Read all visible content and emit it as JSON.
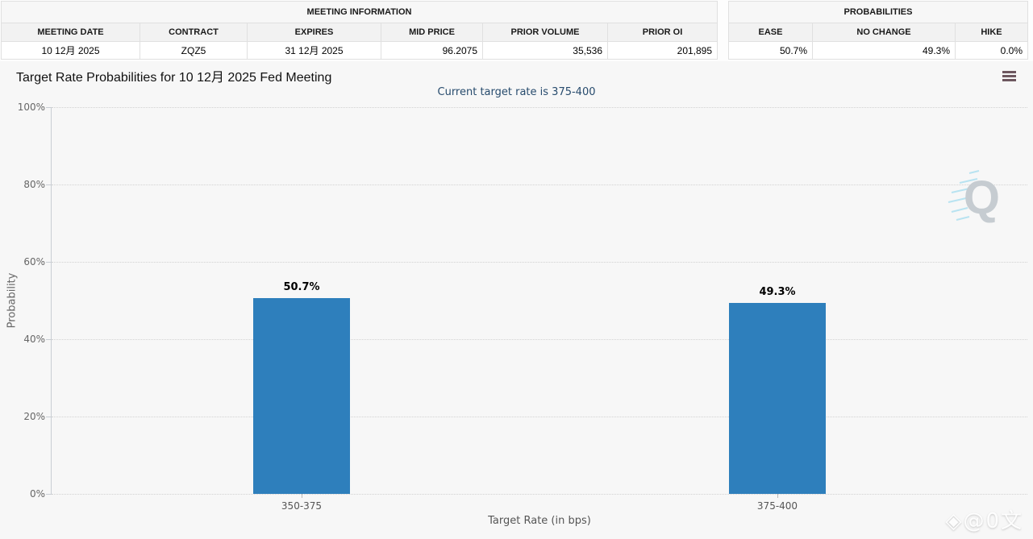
{
  "meeting_info": {
    "group_title": "MEETING INFORMATION",
    "columns": [
      "MEETING DATE",
      "CONTRACT",
      "EXPIRES",
      "MID PRICE",
      "PRIOR VOLUME",
      "PRIOR OI"
    ],
    "values": [
      "10 12月 2025",
      "ZQZ5",
      "31 12月 2025",
      "96.2075",
      "35,536",
      "201,895"
    ]
  },
  "probabilities": {
    "group_title": "PROBABILITIES",
    "columns": [
      "EASE",
      "NO CHANGE",
      "HIKE"
    ],
    "values": [
      "50.7%",
      "49.3%",
      "0.0%"
    ]
  },
  "chart": {
    "title": "Target Rate Probabilities for 10 12月 2025 Fed Meeting",
    "subtitle": "Current target rate is 375-400",
    "subtitle_color": "#274b6d",
    "menu_icon": "hamburger-icon"
  },
  "chart_data": {
    "type": "bar",
    "categories": [
      "350-375",
      "375-400"
    ],
    "values": [
      50.7,
      49.3
    ],
    "labels": [
      "50.7%",
      "49.3%"
    ],
    "title": "Target Rate Probabilities for 10 12月 2025 Fed Meeting",
    "subtitle": "Current target rate is 375-400",
    "xlabel": "Target Rate (in bps)",
    "ylabel": "Probability",
    "yticks": [
      "0%",
      "20%",
      "40%",
      "60%",
      "80%",
      "100%"
    ],
    "ylim": [
      0,
      100
    ],
    "bar_color": "#2e7fbc",
    "grid": "dotted horizontal",
    "legend": "none"
  },
  "watermarks": {
    "q_letter": "Q",
    "bottom_logo_glyph": "◈",
    "bottom_text": "@0文"
  }
}
